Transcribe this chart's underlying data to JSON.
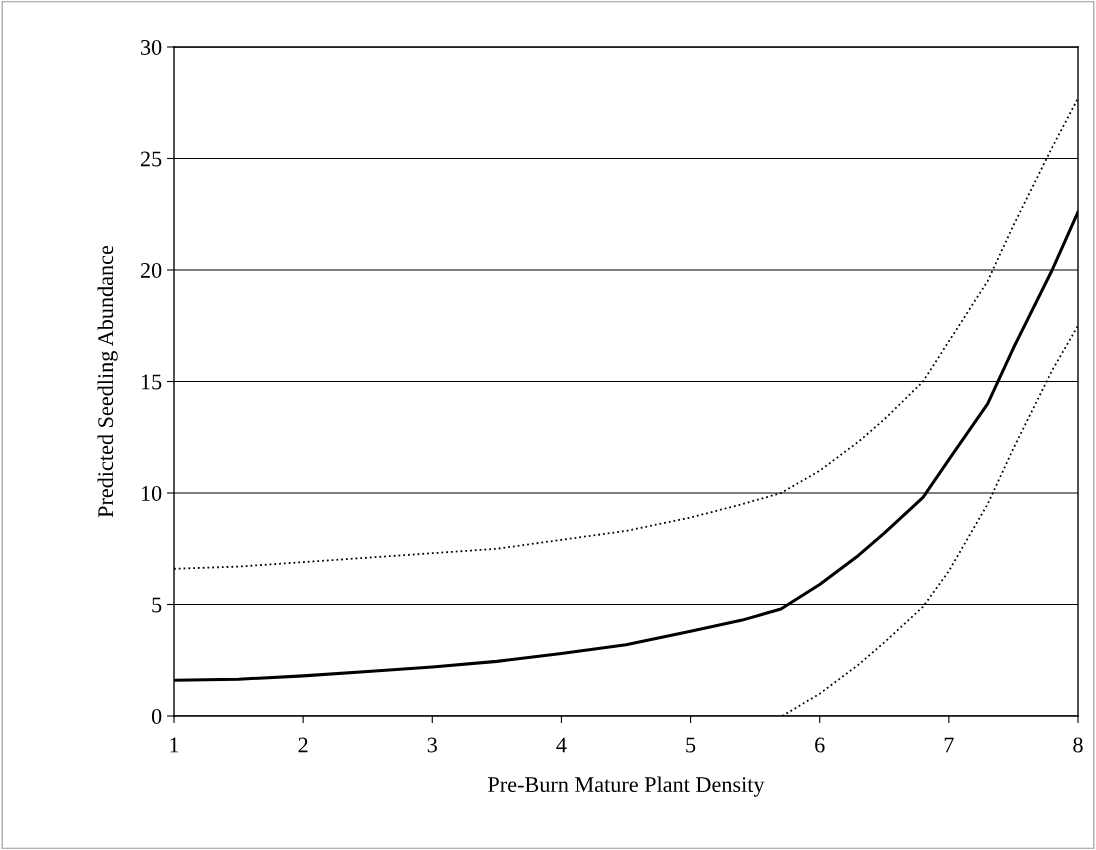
{
  "chart_data": {
    "type": "line",
    "xlabel": "Pre-Burn Mature Plant Density",
    "ylabel": "Predicted Seedling Abundance",
    "xlim": [
      1,
      8
    ],
    "xticks": [
      1,
      2,
      3,
      4,
      5,
      6,
      7,
      8
    ],
    "ylim": [
      0,
      30
    ],
    "yticks": [
      0,
      5,
      10,
      15,
      20,
      25,
      30
    ],
    "grid": "y",
    "marker": "none",
    "series": [
      {
        "color": "#000000",
        "line_style": "solid",
        "x": [
          1,
          1.5,
          2,
          2.5,
          3,
          3.5,
          4,
          4.5,
          5,
          5.4,
          5.7,
          6,
          6.3,
          6.5,
          6.8,
          7,
          7.3,
          7.5,
          7.8,
          8
        ],
        "values": [
          1.6,
          1.65,
          1.8,
          2.0,
          2.2,
          2.45,
          2.8,
          3.2,
          3.8,
          4.3,
          4.8,
          5.9,
          7.2,
          8.2,
          9.8,
          11.5,
          14.0,
          16.5,
          20.0,
          22.6
        ]
      },
      {
        "color": "#000000",
        "line_style": "dotted",
        "x": [
          1,
          1.5,
          2,
          2.5,
          3,
          3.5,
          4,
          4.5,
          5,
          5.4,
          5.7,
          6,
          6.3,
          6.5,
          6.8,
          7,
          7.3,
          7.5,
          7.8,
          8
        ],
        "values": [
          6.6,
          6.7,
          6.9,
          7.1,
          7.3,
          7.5,
          7.9,
          8.3,
          8.9,
          9.5,
          10.0,
          11.0,
          12.3,
          13.3,
          15.0,
          16.8,
          19.5,
          22.0,
          25.5,
          27.7
        ]
      },
      {
        "color": "#000000",
        "line_style": "dotted",
        "x": [
          5.71,
          6,
          6.3,
          6.5,
          6.8,
          7,
          7.3,
          7.5,
          7.8,
          8
        ],
        "values": [
          0,
          1.0,
          2.3,
          3.3,
          4.9,
          6.5,
          9.5,
          12.0,
          15.5,
          17.5
        ]
      }
    ]
  }
}
